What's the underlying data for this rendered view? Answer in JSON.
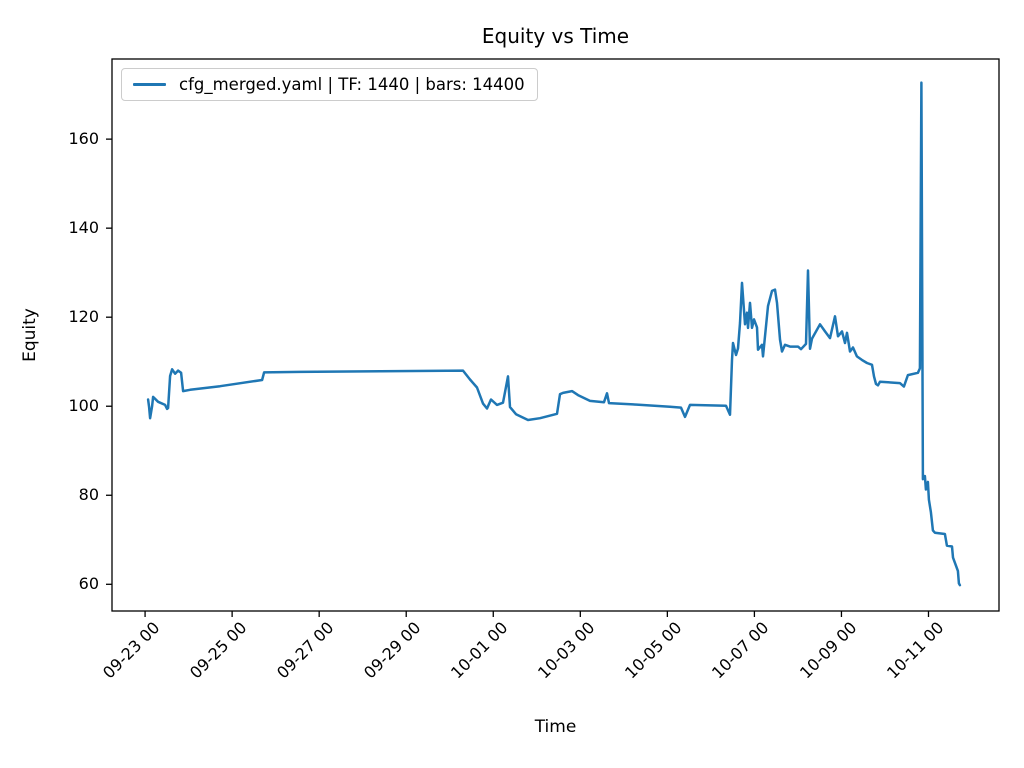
{
  "figure": {
    "title": "Equity vs Time",
    "xlabel": "Time",
    "ylabel": "Equity",
    "legend": {
      "label": "cfg_merged.yaml | TF: 1440 | bars: 14400"
    }
  },
  "chart_data": {
    "type": "line",
    "title": "Equity vs Time",
    "xlabel": "Time",
    "ylabel": "Equity",
    "grid": false,
    "legend_position": "upper left",
    "x_unit": "days since 09-23 00:00",
    "xlim_days": [
      -0.76,
      19.62
    ],
    "ylim": [
      54.0,
      178.0
    ],
    "yticks": [
      60,
      80,
      100,
      120,
      140,
      160
    ],
    "xticks": [
      {
        "d": 0,
        "label": "09-23 00"
      },
      {
        "d": 2,
        "label": "09-25 00"
      },
      {
        "d": 4,
        "label": "09-27 00"
      },
      {
        "d": 6,
        "label": "09-29 00"
      },
      {
        "d": 8,
        "label": "10-01 00"
      },
      {
        "d": 10,
        "label": "10-03 00"
      },
      {
        "d": 12,
        "label": "10-05 00"
      },
      {
        "d": 14,
        "label": "10-07 00"
      },
      {
        "d": 16,
        "label": "10-09 00"
      },
      {
        "d": 18,
        "label": "10-11 00"
      }
    ],
    "series": [
      {
        "name": "cfg_merged.yaml | TF: 1440 | bars: 14400",
        "color": "#1f77b4",
        "line_width": 2.5,
        "points": [
          [
            0.069,
            101.5
          ],
          [
            0.092,
            99.8
          ],
          [
            0.115,
            97.3
          ],
          [
            0.161,
            100.0
          ],
          [
            0.184,
            102.1
          ],
          [
            0.299,
            101.0
          ],
          [
            0.459,
            100.3
          ],
          [
            0.505,
            99.4
          ],
          [
            0.528,
            99.6
          ],
          [
            0.574,
            106.8
          ],
          [
            0.62,
            108.3
          ],
          [
            0.689,
            107.3
          ],
          [
            0.758,
            108.0
          ],
          [
            0.827,
            107.5
          ],
          [
            0.873,
            103.4
          ],
          [
            1.034,
            103.7
          ],
          [
            1.723,
            104.5
          ],
          [
            2.688,
            105.9
          ],
          [
            2.734,
            107.6
          ],
          [
            3.561,
            107.7
          ],
          [
            5.399,
            107.85
          ],
          [
            7.305,
            108.0
          ],
          [
            7.466,
            106.0
          ],
          [
            7.627,
            104.2
          ],
          [
            7.765,
            100.6
          ],
          [
            7.857,
            99.5
          ],
          [
            7.949,
            101.5
          ],
          [
            8.087,
            100.3
          ],
          [
            8.224,
            100.8
          ],
          [
            8.339,
            106.7
          ],
          [
            8.385,
            99.8
          ],
          [
            8.523,
            98.2
          ],
          [
            8.799,
            96.9
          ],
          [
            9.074,
            97.3
          ],
          [
            9.465,
            98.3
          ],
          [
            9.534,
            102.7
          ],
          [
            9.603,
            103.0
          ],
          [
            9.809,
            103.4
          ],
          [
            9.947,
            102.5
          ],
          [
            10.223,
            101.2
          ],
          [
            10.545,
            100.9
          ],
          [
            10.614,
            102.9
          ],
          [
            10.66,
            100.7
          ],
          [
            11.211,
            100.4
          ],
          [
            12.061,
            99.9
          ],
          [
            12.314,
            99.7
          ],
          [
            12.405,
            97.6
          ],
          [
            12.52,
            100.3
          ],
          [
            13.347,
            100.1
          ],
          [
            13.439,
            98.1
          ],
          [
            13.485,
            110.4
          ],
          [
            13.508,
            114.2
          ],
          [
            13.577,
            111.5
          ],
          [
            13.623,
            113.0
          ],
          [
            13.669,
            118.7
          ],
          [
            13.715,
            127.7
          ],
          [
            13.784,
            118.4
          ],
          [
            13.83,
            121.0
          ],
          [
            13.853,
            117.6
          ],
          [
            13.899,
            123.2
          ],
          [
            13.944,
            117.6
          ],
          [
            13.99,
            119.5
          ],
          [
            14.059,
            117.7
          ],
          [
            14.082,
            112.7
          ],
          [
            14.174,
            113.8
          ],
          [
            14.197,
            111.2
          ],
          [
            14.312,
            122.5
          ],
          [
            14.404,
            125.9
          ],
          [
            14.473,
            126.2
          ],
          [
            14.519,
            123.2
          ],
          [
            14.588,
            115.0
          ],
          [
            14.634,
            112.3
          ],
          [
            14.703,
            113.8
          ],
          [
            14.818,
            113.4
          ],
          [
            15.001,
            113.4
          ],
          [
            15.07,
            112.8
          ],
          [
            15.185,
            114.0
          ],
          [
            15.231,
            130.5
          ],
          [
            15.277,
            112.9
          ],
          [
            15.323,
            115.2
          ],
          [
            15.507,
            118.4
          ],
          [
            15.621,
            116.8
          ],
          [
            15.736,
            115.3
          ],
          [
            15.851,
            120.2
          ],
          [
            15.92,
            115.7
          ],
          [
            16.012,
            116.8
          ],
          [
            16.081,
            114.2
          ],
          [
            16.127,
            116.5
          ],
          [
            16.196,
            112.3
          ],
          [
            16.265,
            113.2
          ],
          [
            16.356,
            111.2
          ],
          [
            16.471,
            110.4
          ],
          [
            16.586,
            109.7
          ],
          [
            16.701,
            109.3
          ],
          [
            16.747,
            106.7
          ],
          [
            16.793,
            105.0
          ],
          [
            16.839,
            104.7
          ],
          [
            16.885,
            105.5
          ],
          [
            17.344,
            105.2
          ],
          [
            17.436,
            104.4
          ],
          [
            17.528,
            107.0
          ],
          [
            17.757,
            107.5
          ],
          [
            17.803,
            108.5
          ],
          [
            17.838,
            172.7
          ],
          [
            17.872,
            83.6
          ],
          [
            17.918,
            84.3
          ],
          [
            17.941,
            81.3
          ],
          [
            17.987,
            83.0
          ],
          [
            18.01,
            79.0
          ],
          [
            18.056,
            76.2
          ],
          [
            18.102,
            72.1
          ],
          [
            18.148,
            71.6
          ],
          [
            18.378,
            71.3
          ],
          [
            18.424,
            68.7
          ],
          [
            18.539,
            68.5
          ],
          [
            18.562,
            66.0
          ],
          [
            18.676,
            63.0
          ],
          [
            18.699,
            60.2
          ],
          [
            18.722,
            59.8
          ]
        ]
      }
    ],
    "style": {
      "line_color": "#1f77b4",
      "spine_color": "#000000",
      "tick_color": "#000000",
      "legend_border_color": "#cccccc",
      "background": "#ffffff"
    }
  }
}
